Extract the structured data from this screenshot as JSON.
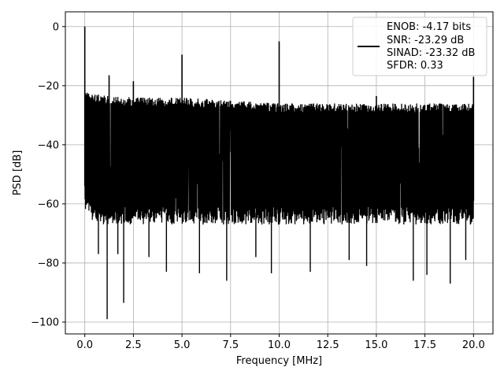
{
  "chart_data": {
    "type": "line",
    "title": "",
    "xlabel": "Frequency [MHz]",
    "ylabel": "PSD [dB]",
    "xlim": [
      -1.0,
      21.0
    ],
    "ylim": [
      -104.0,
      5.0
    ],
    "grid": true,
    "x_ticks": [
      0.0,
      2.5,
      5.0,
      7.5,
      10.0,
      12.5,
      15.0,
      17.5,
      20.0
    ],
    "x_tick_labels": [
      "0.0",
      "2.5",
      "5.0",
      "7.5",
      "10.0",
      "12.5",
      "15.0",
      "17.5",
      "20.0"
    ],
    "y_ticks": [
      0,
      -20,
      -40,
      -60,
      -80,
      -100
    ],
    "y_tick_labels": [
      "0",
      "−20",
      "−40",
      "−60",
      "−80",
      "−100"
    ],
    "legend": {
      "placement": "upper right",
      "entries": [
        "ENOB: -4.17 bits",
        "SNR: -23.29 dB",
        "SINAD: -23.32 dB",
        "SFDR: 0.33"
      ]
    },
    "series": [
      {
        "color": "#000000",
        "noise_floor": {
          "x": [
            0.0,
            0.1,
            0.5,
            1.0,
            2.5,
            5.0,
            7.5,
            10.0,
            12.5,
            15.0,
            17.5,
            20.0
          ],
          "upper": [
            -20,
            -22,
            -23,
            -23,
            -24,
            -24,
            -25,
            -26,
            -26,
            -26,
            -26,
            -26
          ],
          "lower": [
            -62,
            -64,
            -66,
            -67,
            -67,
            -67,
            -67,
            -67,
            -67,
            -67,
            -67,
            -67
          ]
        },
        "peaks": [
          {
            "x": 0.0,
            "y": 0
          },
          {
            "x": 1.25,
            "y": -16.5
          },
          {
            "x": 2.5,
            "y": -18.5
          },
          {
            "x": 5.0,
            "y": -9.5
          },
          {
            "x": 10.0,
            "y": -5.0
          },
          {
            "x": 15.0,
            "y": -23.5
          },
          {
            "x": 20.0,
            "y": -17.0
          }
        ],
        "dips": [
          {
            "x": 1.15,
            "y": -99.0
          },
          {
            "x": 2.0,
            "y": -93.5
          },
          {
            "x": 4.2,
            "y": -83.0
          },
          {
            "x": 5.9,
            "y": -83.5
          },
          {
            "x": 7.3,
            "y": -86.0
          },
          {
            "x": 9.6,
            "y": -83.5
          },
          {
            "x": 11.6,
            "y": -83.0
          },
          {
            "x": 14.5,
            "y": -81.0
          },
          {
            "x": 16.9,
            "y": -86.0
          },
          {
            "x": 17.6,
            "y": -84.0
          },
          {
            "x": 18.8,
            "y": -87.0
          },
          {
            "x": 0.7,
            "y": -77.0
          },
          {
            "x": 1.7,
            "y": -77.0
          },
          {
            "x": 3.3,
            "y": -78.0
          },
          {
            "x": 8.8,
            "y": -78.0
          },
          {
            "x": 13.6,
            "y": -79.0
          },
          {
            "x": 19.6,
            "y": -79.0
          }
        ]
      }
    ]
  }
}
